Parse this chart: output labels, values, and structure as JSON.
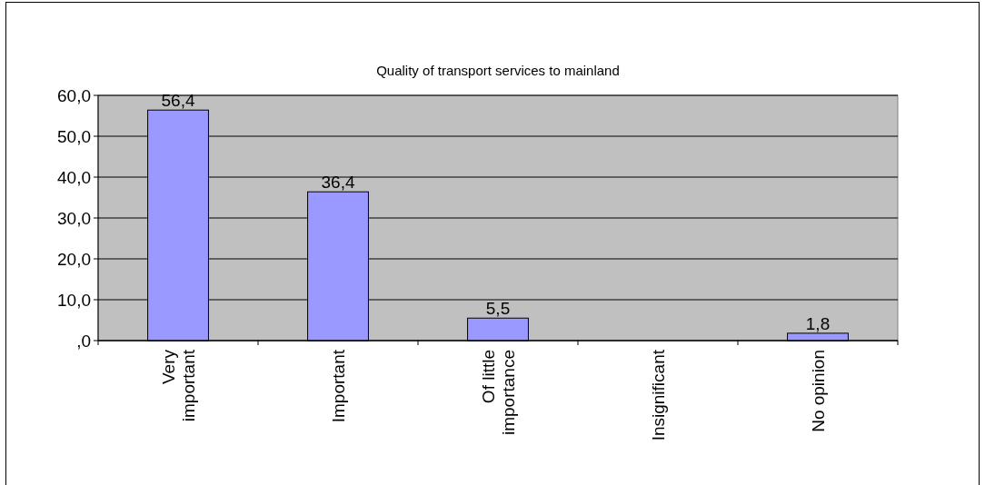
{
  "chart_data": {
    "type": "bar",
    "title": "Quality of transport services to mainland",
    "categories": [
      "Very important",
      "Important",
      "Of little importance",
      "Insignificant",
      "No opinion"
    ],
    "values": [
      56.4,
      36.4,
      5.5,
      null,
      1.8
    ],
    "value_labels": [
      "56,4",
      "36,4",
      "5,5",
      null,
      "1,8"
    ],
    "color": "#9999ff",
    "ylim": [
      0,
      60
    ],
    "yticks": [
      {
        "value": 0,
        "label": ",0"
      },
      {
        "value": 10,
        "label": "10,0"
      },
      {
        "value": 20,
        "label": "20,0"
      },
      {
        "value": 30,
        "label": "30,0"
      },
      {
        "value": 40,
        "label": "40,0"
      },
      {
        "value": 50,
        "label": "50,0"
      },
      {
        "value": 60,
        "label": "60,0"
      }
    ],
    "grid": "y"
  }
}
